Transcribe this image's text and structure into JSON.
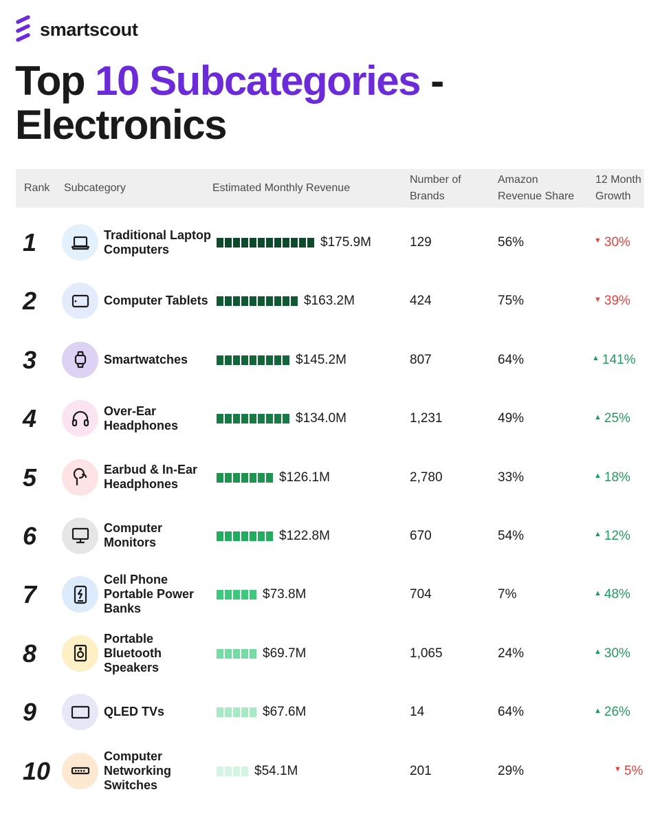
{
  "brand": {
    "name": "smartscout",
    "logo_icon": "smartscout-logo-icon",
    "logo_color": "#6c2bd9"
  },
  "title": {
    "part1": "Top ",
    "accent": "10 Subcategories",
    "part2": " -",
    "line2": "Electronics",
    "accent_color": "#6c2bd9"
  },
  "table": {
    "headers": {
      "rank": "Rank",
      "subcategory": "Subcategory",
      "revenue": "Estimated Monthly Revenue",
      "brands_l1": "Number of",
      "brands_l2": "Brands",
      "share_l1": "Amazon",
      "share_l2": "Revenue Share",
      "growth_l1": "12 Month",
      "growth_l2": "Growth"
    },
    "colors": {
      "up": "#1e9e5c",
      "down": "#e8413a"
    },
    "rows": [
      {
        "rank": "1",
        "name": "Traditional Laptop Computers",
        "icon": "laptop-icon",
        "icon_bg": "#e3f1fc",
        "bar_segments": 12,
        "bar_color": "#0c4a2b",
        "revenue": "$175.9M",
        "brands": "129",
        "share": "56%",
        "growth": "30%",
        "trend": "down"
      },
      {
        "rank": "2",
        "name": "Computer Tablets",
        "icon": "tablet-icon",
        "icon_bg": "#e4ecfb",
        "bar_segments": 10,
        "bar_color": "#0f5932",
        "revenue": "$163.2M",
        "brands": "424",
        "share": "75%",
        "growth": "39%",
        "trend": "down"
      },
      {
        "rank": "3",
        "name": "Smartwatches",
        "icon": "smartwatch-icon",
        "icon_bg": "#ddd2f3",
        "bar_segments": 9,
        "bar_color": "#14663a",
        "revenue": "$145.2M",
        "brands": "807",
        "share": "64%",
        "growth": "141%",
        "trend": "up"
      },
      {
        "rank": "4",
        "name": "Over-Ear Headphones",
        "icon": "headphones-icon",
        "icon_bg": "#fbe4f2",
        "bar_segments": 9,
        "bar_color": "#187a45",
        "revenue": "$134.0M",
        "brands": "1,231",
        "share": "49%",
        "growth": "25%",
        "trend": "up"
      },
      {
        "rank": "5",
        "name": "Earbud & In-Ear Headphones",
        "icon": "earbud-icon",
        "icon_bg": "#fde3e3",
        "bar_segments": 7,
        "bar_color": "#1e9450",
        "revenue": "$126.1M",
        "brands": "2,780",
        "share": "33%",
        "growth": "18%",
        "trend": "up"
      },
      {
        "rank": "6",
        "name": "Computer Monitors",
        "icon": "monitor-icon",
        "icon_bg": "#e6e6e6",
        "bar_segments": 7,
        "bar_color": "#22ad5e",
        "revenue": "$122.8M",
        "brands": "670",
        "share": "54%",
        "growth": "12%",
        "trend": "up"
      },
      {
        "rank": "7",
        "name": "Cell Phone Portable Power Banks",
        "icon": "power-bank-icon",
        "icon_bg": "#dcebfb",
        "bar_segments": 5,
        "bar_color": "#3cc97e",
        "revenue": "$73.8M",
        "brands": "704",
        "share": "7%",
        "growth": "48%",
        "trend": "up"
      },
      {
        "rank": "8",
        "name": "Portable Bluetooth Speakers",
        "icon": "speaker-icon",
        "icon_bg": "#fdf0c4",
        "bar_segments": 5,
        "bar_color": "#74dca2",
        "revenue": "$69.7M",
        "brands": "1,065",
        "share": "24%",
        "growth": "30%",
        "trend": "up"
      },
      {
        "rank": "9",
        "name": "QLED TVs",
        "icon": "tv-icon",
        "icon_bg": "#e6e8f7",
        "bar_segments": 5,
        "bar_color": "#a6eac3",
        "revenue": "$67.6M",
        "brands": "14",
        "share": "64%",
        "growth": "26%",
        "trend": "up"
      },
      {
        "rank": "10",
        "name": "Computer Networking Switches",
        "icon": "network-switch-icon",
        "icon_bg": "#fde8d2",
        "bar_segments": 4,
        "bar_color": "#d5f5e3",
        "revenue": "$54.1M",
        "brands": "201",
        "share": "29%",
        "growth": "5%",
        "trend": "down"
      }
    ]
  }
}
